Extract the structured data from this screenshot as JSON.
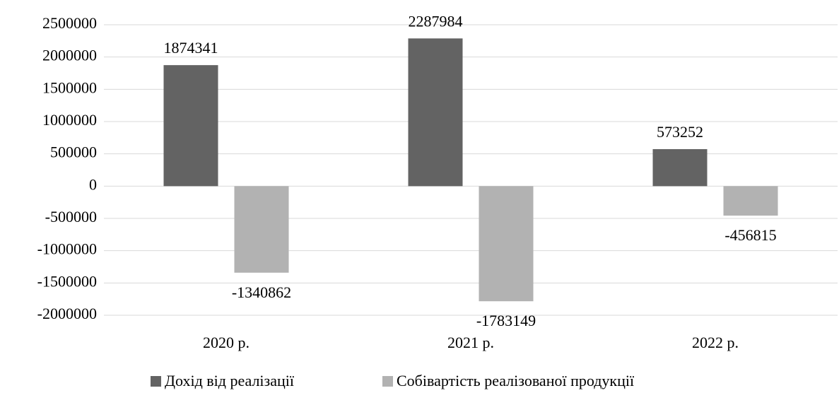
{
  "chart_data": {
    "type": "bar",
    "categories": [
      "2020 р.",
      "2021 р.",
      "2022 р."
    ],
    "series": [
      {
        "name": "Дохід від реалізації",
        "color": "#636363",
        "values": [
          1874341,
          2287984,
          573252
        ]
      },
      {
        "name": "Собівартість реалізованої продукції",
        "color": "#b2b2b2",
        "values": [
          -1340862,
          -1783149,
          -456815
        ]
      }
    ],
    "ylim": [
      -2000000,
      2500000
    ],
    "yticks": [
      -2000000,
      -1500000,
      -1000000,
      -500000,
      0,
      500000,
      1000000,
      1500000,
      2000000,
      2500000
    ],
    "grid": true,
    "legend": "bottom"
  }
}
